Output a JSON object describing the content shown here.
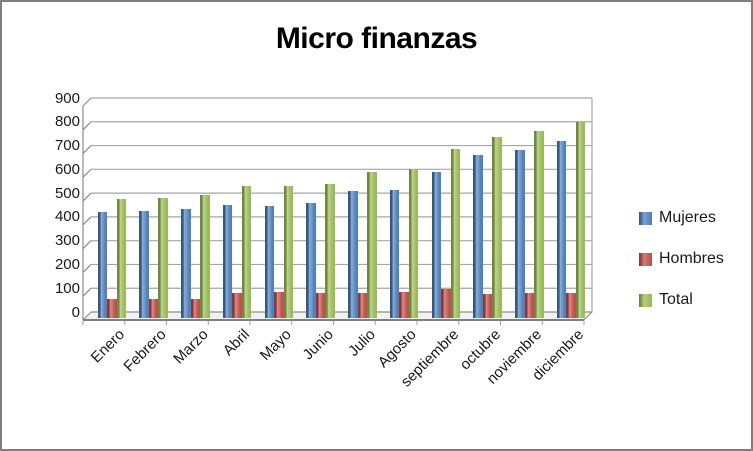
{
  "window": {
    "background": "#ffffff",
    "border_color": "#7f7f7f"
  },
  "chart_data": {
    "type": "bar",
    "title": "Micro finanzas",
    "categories": [
      "Enero",
      "Febrero",
      "Marzo",
      "Abril",
      "Mayo",
      "Junio",
      "Julio",
      "Agosto",
      "septiembre",
      "octubre",
      "noviembre",
      "diciembre"
    ],
    "series": [
      {
        "name": "Mujeres",
        "color": "#4F81BD",
        "edge": "#35597F",
        "values": [
          420,
          425,
          435,
          450,
          445,
          460,
          510,
          515,
          590,
          660,
          680,
          720
        ]
      },
      {
        "name": "Hombres",
        "color": "#C0504D",
        "edge": "#8C3836",
        "values": [
          55,
          55,
          55,
          80,
          85,
          80,
          80,
          85,
          95,
          75,
          80,
          80
        ]
      },
      {
        "name": "Total",
        "color": "#9BBB59",
        "edge": "#71893F",
        "values": [
          475,
          480,
          490,
          530,
          530,
          540,
          590,
          600,
          685,
          735,
          760,
          800
        ]
      }
    ],
    "ylim": [
      0,
      900
    ],
    "ytick_step": 100,
    "yticks": [
      "0",
      "100",
      "200",
      "300",
      "400",
      "500",
      "600",
      "700",
      "800",
      "900"
    ],
    "xlabel": "",
    "ylabel": "",
    "grid": "horizontal",
    "legend_position": "right",
    "x_label_rotation_deg": 45
  },
  "colors": {
    "gridline": "#A6A6A6",
    "wall_line": "#8C8C8C",
    "floor_edge": "#7F7F7F",
    "tick": "#9E9E9E",
    "text": "#1a1a1a"
  }
}
